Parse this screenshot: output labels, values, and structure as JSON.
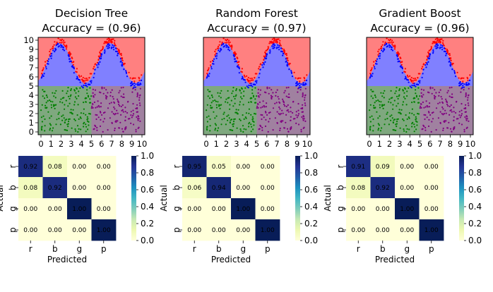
{
  "colors": {
    "red_region": "#ff8080",
    "blue_region": "#8080ff",
    "green_region": "#808080",
    "green_tint": "#7fa87f",
    "purple_region": "#a081a0",
    "red_points": "#ff0000",
    "blue_points": "#0000ff",
    "green_points": "#008000",
    "purple_points": "#800080"
  },
  "chart_data": [
    {
      "type": "scatter",
      "title": "Decision Tree\nAccuracy = (0.96)",
      "title_lines": [
        "Decision Tree",
        "Accuracy = (0.96)"
      ],
      "xlim": [
        0,
        10
      ],
      "ylim": [
        0,
        10
      ],
      "x_ticks": [
        "0",
        "1",
        "2",
        "3",
        "4",
        "5",
        "6",
        "7",
        "8",
        "9",
        "10"
      ],
      "y_ticks": [
        "0",
        "1",
        "2",
        "3",
        "4",
        "5",
        "6",
        "7",
        "8",
        "9",
        "10"
      ],
      "show_y_ticks": true,
      "regions": [
        {
          "class": "r",
          "x": [
            0,
            10
          ],
          "y": [
            5,
            10
          ],
          "note": "above curve"
        },
        {
          "class": "b",
          "x": [
            0,
            10
          ],
          "y": [
            5,
            10
          ],
          "note": "below curve"
        },
        {
          "class": "g",
          "x": [
            0,
            5
          ],
          "y": [
            0,
            5
          ]
        },
        {
          "class": "p",
          "x": [
            5,
            10
          ],
          "y": [
            0,
            5
          ]
        }
      ]
    },
    {
      "type": "scatter",
      "title": "Random Forest\nAccuracy = (0.97)",
      "title_lines": [
        "Random Forest",
        "Accuracy = (0.97)"
      ],
      "xlim": [
        0,
        10
      ],
      "ylim": [
        0,
        10
      ],
      "x_ticks": [
        "0",
        "1",
        "2",
        "3",
        "4",
        "5",
        "6",
        "7",
        "8",
        "9",
        "10"
      ],
      "show_y_ticks": false
    },
    {
      "type": "scatter",
      "title": "Gradient Boost\nAccuracy = (0.96)",
      "title_lines": [
        "Gradient Boost",
        "Accuracy = (0.96)"
      ],
      "xlim": [
        0,
        10
      ],
      "ylim": [
        0,
        10
      ],
      "x_ticks": [
        "0",
        "1",
        "2",
        "3",
        "4",
        "5",
        "6",
        "7",
        "8",
        "9",
        "10"
      ],
      "show_y_ticks": false
    },
    {
      "type": "heatmap",
      "xlabel": "Predicted",
      "ylabel": "Actual",
      "categories": [
        "r",
        "b",
        "g",
        "p"
      ],
      "values": [
        [
          0.92,
          0.08,
          0.0,
          0.0
        ],
        [
          0.08,
          0.92,
          0.0,
          0.0
        ],
        [
          0.0,
          0.0,
          1.0,
          0.0
        ],
        [
          0.0,
          0.0,
          0.0,
          1.0
        ]
      ],
      "labels": [
        [
          "0.92",
          "0.08",
          "0.00",
          "0.00"
        ],
        [
          "0.08",
          "0.92",
          "0.00",
          "0.00"
        ],
        [
          "0.00",
          "0.00",
          "1.00",
          "0.00"
        ],
        [
          "0.00",
          "0.00",
          "0.00",
          "1.00"
        ]
      ],
      "colorbar": {
        "range": [
          0,
          1
        ],
        "ticks": [
          "0.0",
          "0.2",
          "0.4",
          "0.6",
          "0.8",
          "1.0"
        ],
        "colormap": "YlGnBu"
      }
    },
    {
      "type": "heatmap",
      "xlabel": "Predicted",
      "ylabel": "Actual",
      "categories": [
        "r",
        "b",
        "g",
        "p"
      ],
      "values": [
        [
          0.95,
          0.05,
          0.0,
          0.0
        ],
        [
          0.06,
          0.94,
          0.0,
          0.0
        ],
        [
          0.0,
          0.0,
          1.0,
          0.0
        ],
        [
          0.0,
          0.0,
          0.0,
          1.0
        ]
      ],
      "labels": [
        [
          "0.95",
          "0.05",
          "0.00",
          "0.00"
        ],
        [
          "0.06",
          "0.94",
          "0.00",
          "0.00"
        ],
        [
          "0.00",
          "0.00",
          "1.00",
          "0.00"
        ],
        [
          "0.00",
          "0.00",
          "0.00",
          "1.00"
        ]
      ],
      "colorbar": {
        "range": [
          0,
          1
        ],
        "ticks": [
          "0.0",
          "0.2",
          "0.4",
          "0.6",
          "0.8",
          "1.0"
        ],
        "colormap": "YlGnBu"
      }
    },
    {
      "type": "heatmap",
      "xlabel": "Predicted",
      "ylabel": "Actual",
      "categories": [
        "r",
        "b",
        "g",
        "p"
      ],
      "values": [
        [
          0.91,
          0.09,
          0.0,
          0.0
        ],
        [
          0.08,
          0.92,
          0.0,
          0.0
        ],
        [
          0.0,
          0.0,
          1.0,
          0.0
        ],
        [
          0.0,
          0.0,
          0.0,
          1.0
        ]
      ],
      "labels": [
        [
          "0.91",
          "0.09",
          "0.00",
          "0.00"
        ],
        [
          "0.08",
          "0.92",
          "0.00",
          "0.00"
        ],
        [
          "0.00",
          "0.00",
          "1.00",
          "0.00"
        ],
        [
          "0.00",
          "0.00",
          "0.00",
          "1.00"
        ]
      ],
      "colorbar": {
        "range": [
          0,
          1
        ],
        "ticks": [
          "0.0",
          "0.2",
          "0.4",
          "0.6",
          "0.8",
          "1.0"
        ],
        "colormap": "YlGnBu"
      }
    }
  ]
}
